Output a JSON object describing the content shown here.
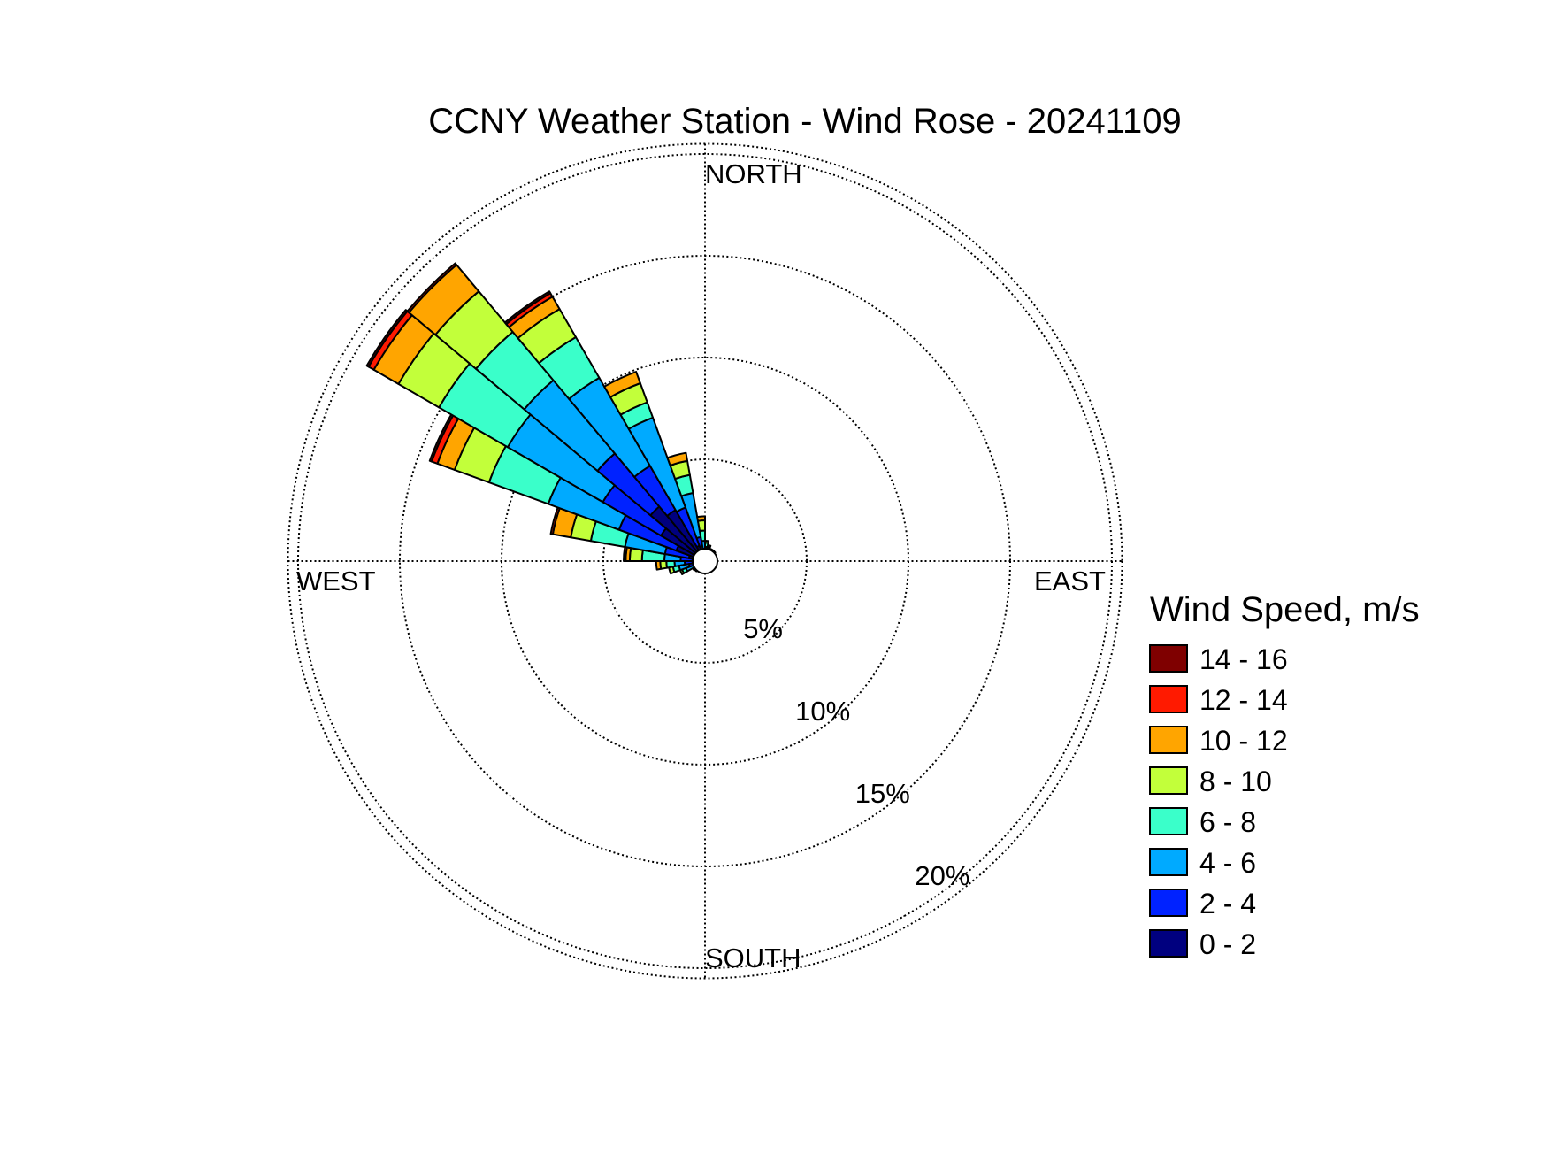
{
  "chart_data": {
    "type": "windrose",
    "title": "CCNY Weather Station - Wind Rose - 20241109",
    "directions": {
      "north": "NORTH",
      "south": "SOUTH",
      "east": "EAST",
      "west": "WEST"
    },
    "rings": [
      {
        "value": 5,
        "label": "5%"
      },
      {
        "value": 10,
        "label": "10%"
      },
      {
        "value": 15,
        "label": "15%"
      },
      {
        "value": 20,
        "label": "20%"
      }
    ],
    "rmax": 20.5,
    "legend_title": "Wind Speed, m/s",
    "speed_bins": [
      {
        "label": "0 - 2",
        "color": "#00007F"
      },
      {
        "label": "2 - 4",
        "color": "#0022FF"
      },
      {
        "label": "4 - 6",
        "color": "#00AAFF"
      },
      {
        "label": "6 - 8",
        "color": "#3AFFCA"
      },
      {
        "label": "8 - 10",
        "color": "#C2FF3A"
      },
      {
        "label": "10 - 12",
        "color": "#FFA500"
      },
      {
        "label": "12 - 14",
        "color": "#FF1A00"
      },
      {
        "label": "14 - 16",
        "color": "#7F0000"
      }
    ],
    "sector_width_deg": 10,
    "sectors": [
      {
        "direction_deg": 265,
        "cumulative": [
          0.5,
          1.0,
          1.5,
          1.9,
          2.2,
          2.4,
          2.4,
          2.4
        ]
      },
      {
        "direction_deg": 275,
        "cumulative": [
          0.6,
          1.2,
          2.0,
          3.1,
          3.7,
          3.9,
          4.0,
          4.0
        ]
      },
      {
        "direction_deg": 285,
        "cumulative": [
          0.8,
          2.0,
          4.0,
          5.7,
          6.7,
          7.6,
          7.7,
          7.7
        ]
      },
      {
        "direction_deg": 295,
        "cumulative": [
          1.5,
          4.5,
          8.2,
          11.3,
          13.1,
          14.0,
          14.3,
          14.4
        ]
      },
      {
        "direction_deg": 305,
        "cumulative": [
          2.5,
          5.8,
          11.2,
          15.1,
          17.4,
          18.8,
          19.1,
          19.2
        ]
      },
      {
        "direction_deg": 315,
        "cumulative": [
          3.5,
          6.9,
          11.6,
          14.7,
          17.3,
          19.0,
          19.1,
          19.1
        ]
      },
      {
        "direction_deg": 325,
        "cumulative": [
          2.9,
          5.4,
          10.4,
          12.7,
          14.3,
          15.0,
          15.2,
          15.3
        ]
      },
      {
        "direction_deg": 335,
        "cumulative": [
          0.8,
          2.8,
          7.5,
          8.3,
          9.3,
          9.9,
          9.9,
          9.9
        ]
      },
      {
        "direction_deg": 345,
        "cumulative": [
          0.5,
          1.2,
          3.4,
          4.3,
          5.0,
          5.4,
          5.4,
          5.4
        ]
      },
      {
        "direction_deg": 355,
        "cumulative": [
          0.3,
          0.6,
          1.0,
          1.5,
          2.0,
          2.2,
          2.2,
          2.2
        ]
      },
      {
        "direction_deg": 5,
        "cumulative": [
          0.2,
          0.4,
          0.7,
          0.9,
          1.0,
          1.0,
          1.0,
          1.0
        ]
      },
      {
        "direction_deg": 15,
        "cumulative": [
          0.2,
          0.4,
          0.6,
          0.7,
          0.8,
          0.8,
          0.8,
          0.8
        ]
      },
      {
        "direction_deg": 25,
        "cumulative": [
          0.2,
          0.3,
          0.4,
          0.5,
          0.5,
          0.5,
          0.5,
          0.5
        ]
      },
      {
        "direction_deg": 35,
        "cumulative": [
          0.2,
          0.3,
          0.4,
          0.5,
          0.5,
          0.5,
          0.5,
          0.5
        ]
      },
      {
        "direction_deg": 45,
        "cumulative": [
          0.2,
          0.3,
          0.4,
          0.4,
          0.4,
          0.4,
          0.4,
          0.4
        ]
      },
      {
        "direction_deg": 225,
        "cumulative": [
          0.2,
          0.3,
          0.4,
          0.5,
          0.5,
          0.5,
          0.5,
          0.5
        ]
      },
      {
        "direction_deg": 235,
        "cumulative": [
          0.2,
          0.4,
          0.6,
          0.7,
          0.7,
          0.7,
          0.7,
          0.7
        ]
      },
      {
        "direction_deg": 245,
        "cumulative": [
          0.3,
          0.6,
          1.0,
          1.2,
          1.3,
          1.3,
          1.3,
          1.3
        ]
      },
      {
        "direction_deg": 255,
        "cumulative": [
          0.4,
          0.8,
          1.3,
          1.6,
          1.8,
          1.8,
          1.8,
          1.8
        ]
      }
    ]
  }
}
